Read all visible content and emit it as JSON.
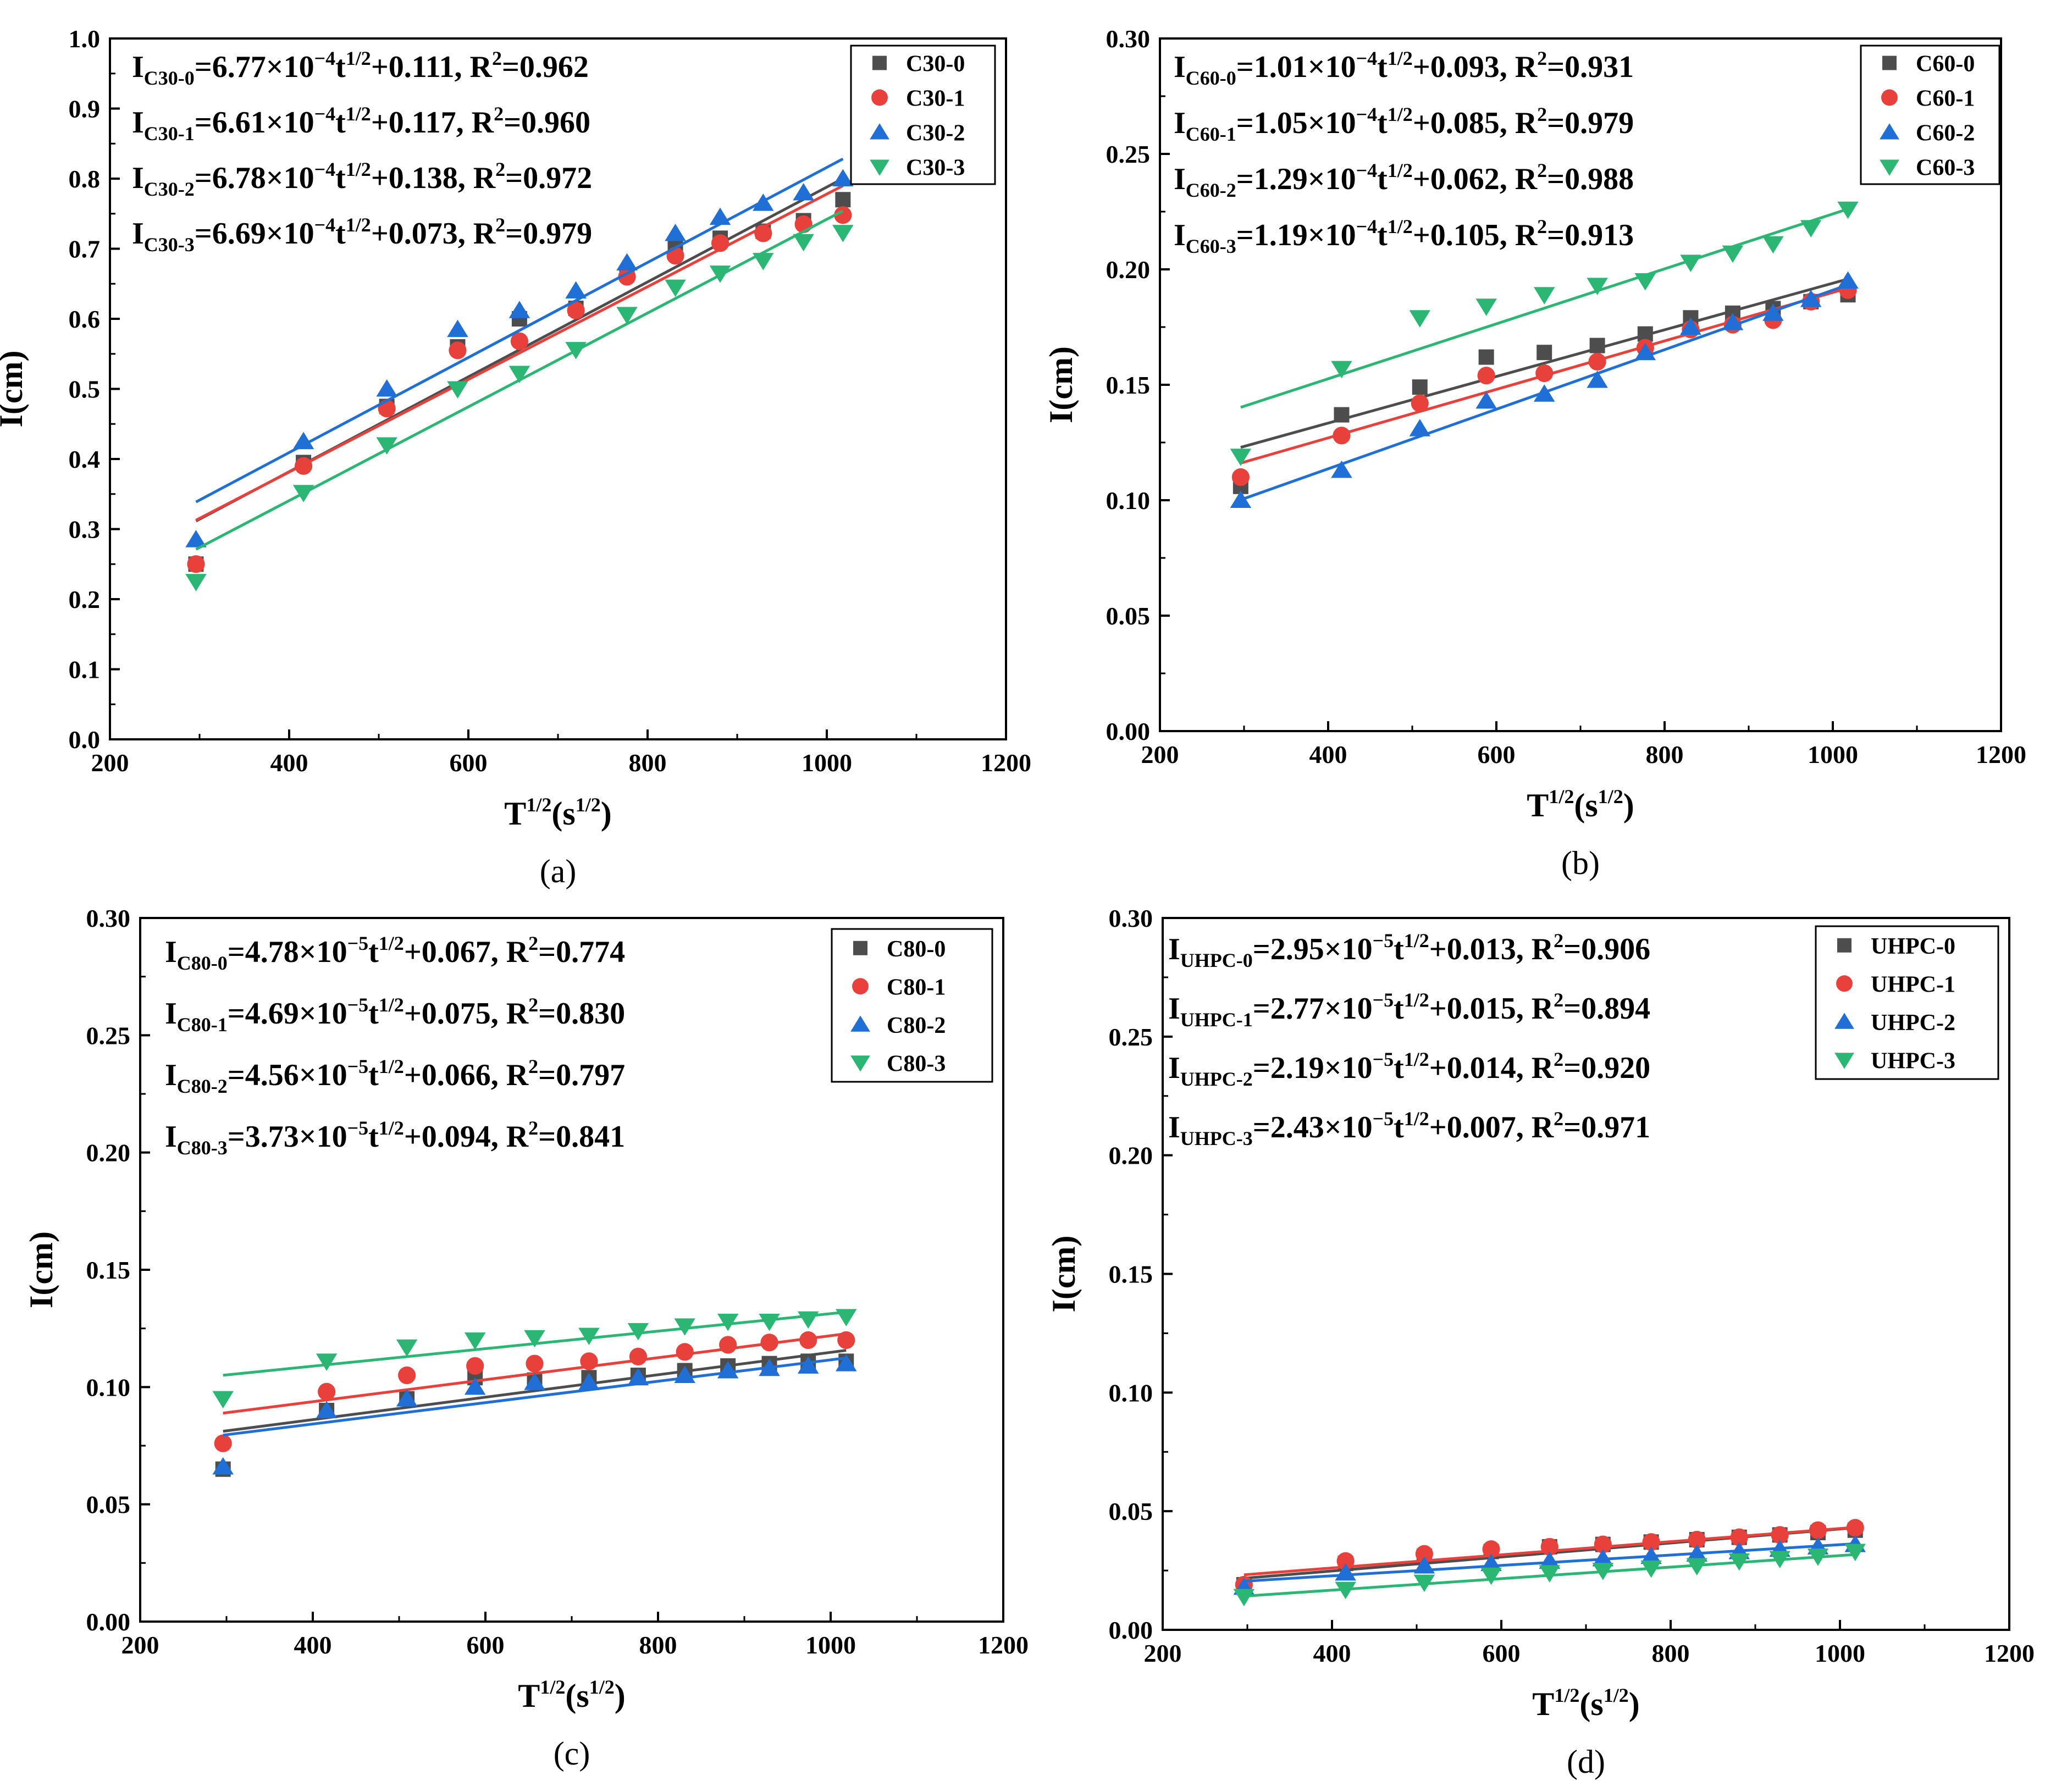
{
  "chart_data": [
    {
      "type": "scatter",
      "panel_label": "(a)",
      "xlabel": {
        "base": "T",
        "sup1": "1/2",
        "mid": "(s",
        "sup2": "1/2",
        "end": ")"
      },
      "ylabel": "I(cm)",
      "xlim": [
        200,
        1200
      ],
      "ylim": [
        0,
        1.0
      ],
      "xticks": [
        "200",
        "400",
        "600",
        "800",
        "1000",
        "1200"
      ],
      "yticks": [
        "0.0",
        "0.1",
        "0.2",
        "0.3",
        "0.4",
        "0.5",
        "0.6",
        "0.7",
        "0.8",
        "0.9",
        "1.0"
      ],
      "legend_position": "top-right",
      "x": [
        296,
        416,
        509,
        588,
        657,
        720,
        777,
        831,
        881,
        929,
        974,
        1018
      ],
      "series": [
        {
          "name": "C30-0",
          "color": "#4d4d4d",
          "marker": "square",
          "fit": [
            0.111,
            0.000677
          ],
          "values": [
            0.25,
            0.395,
            0.475,
            0.56,
            0.6,
            0.615,
            0.665,
            0.7,
            0.715,
            0.725,
            0.74,
            0.77
          ]
        },
        {
          "name": "C30-1",
          "color": "#e8403a",
          "marker": "circle",
          "fit": [
            0.117,
            0.000661
          ],
          "values": [
            0.25,
            0.39,
            0.472,
            0.555,
            0.568,
            0.612,
            0.66,
            0.69,
            0.708,
            0.722,
            0.735,
            0.748
          ]
        },
        {
          "name": "C30-2",
          "color": "#1f6fd6",
          "marker": "triangle-up",
          "fit": [
            0.138,
            0.000678
          ],
          "values": [
            0.285,
            0.425,
            0.5,
            0.585,
            0.612,
            0.64,
            0.68,
            0.722,
            0.745,
            0.765,
            0.78,
            0.8
          ]
        },
        {
          "name": "C30-3",
          "color": "#2bb673",
          "marker": "triangle-down",
          "fit": [
            0.073,
            0.000669
          ],
          "values": [
            0.225,
            0.352,
            0.42,
            0.5,
            0.522,
            0.556,
            0.606,
            0.645,
            0.665,
            0.683,
            0.71,
            0.723
          ]
        }
      ],
      "equations": [
        {
          "sub": "C30-0",
          "body": "=6.77×10",
          "exp": "−4",
          "t": "t",
          "half": "1/2",
          "tail": "+0.111, R",
          "r2sup": "2",
          "r2": "=0.962"
        },
        {
          "sub": "C30-1",
          "body": "=6.61×10",
          "exp": "−4",
          "t": "t",
          "half": "1/2",
          "tail": "+0.117, R",
          "r2sup": "2",
          "r2": "=0.960"
        },
        {
          "sub": "C30-2",
          "body": "=6.78×10",
          "exp": "−4",
          "t": "t",
          "half": "1/2",
          "tail": "+0.138, R",
          "r2sup": "2",
          "r2": "=0.972"
        },
        {
          "sub": "C30-3",
          "body": "=6.69×10",
          "exp": "−4",
          "t": "t",
          "half": "1/2",
          "tail": "+0.073, R",
          "r2sup": "2",
          "r2": "=0.979"
        }
      ]
    },
    {
      "type": "scatter",
      "panel_label": "(b)",
      "xlabel": {
        "base": "T",
        "sup1": "1/2",
        "mid": "(s",
        "sup2": "1/2",
        "end": ")"
      },
      "ylabel": "I(cm)",
      "xlim": [
        200,
        1200
      ],
      "ylim": [
        0,
        0.3
      ],
      "xticks": [
        "200",
        "400",
        "600",
        "800",
        "1000",
        "1200"
      ],
      "yticks": [
        "0.00",
        "0.05",
        "0.10",
        "0.15",
        "0.20",
        "0.25",
        "0.30"
      ],
      "legend_position": "top-right",
      "x": [
        296,
        416,
        509,
        588,
        657,
        720,
        777,
        831,
        881,
        929,
        974,
        1018
      ],
      "series": [
        {
          "name": "C60-0",
          "color": "#4d4d4d",
          "marker": "square",
          "fit": [
            0.093,
            0.000101
          ],
          "values": [
            0.106,
            0.137,
            0.149,
            0.162,
            0.164,
            0.167,
            0.172,
            0.179,
            0.181,
            0.183,
            0.186,
            0.189
          ]
        },
        {
          "name": "C60-1",
          "color": "#e8403a",
          "marker": "circle",
          "fit": [
            0.085,
            0.000105
          ],
          "values": [
            0.11,
            0.128,
            0.142,
            0.154,
            0.155,
            0.16,
            0.166,
            0.174,
            0.176,
            0.178,
            0.186,
            0.191
          ]
        },
        {
          "name": "C60-2",
          "color": "#1f6fd6",
          "marker": "triangle-up",
          "fit": [
            0.062,
            0.000129
          ],
          "values": [
            0.1,
            0.113,
            0.131,
            0.143,
            0.146,
            0.152,
            0.164,
            0.175,
            0.177,
            0.181,
            0.187,
            0.195
          ]
        },
        {
          "name": "C60-3",
          "color": "#2bb673",
          "marker": "triangle-down",
          "fit": [
            0.105,
            0.000119
          ],
          "values": [
            0.119,
            0.157,
            0.179,
            0.184,
            0.189,
            0.193,
            0.195,
            0.203,
            0.207,
            0.211,
            0.218,
            0.226
          ]
        }
      ],
      "equations": [
        {
          "sub": "C60-0",
          "body": "=1.01×10",
          "exp": "−4",
          "t": "t",
          "half": "1/2",
          "tail": "+0.093, R",
          "r2sup": "2",
          "r2": "=0.931"
        },
        {
          "sub": "C60-1",
          "body": "=1.05×10",
          "exp": "−4",
          "t": "t",
          "half": "1/2",
          "tail": "+0.085, R",
          "r2sup": "2",
          "r2": "=0.979"
        },
        {
          "sub": "C60-2",
          "body": "=1.29×10",
          "exp": "−4",
          "t": "t",
          "half": "1/2",
          "tail": "+0.062, R",
          "r2sup": "2",
          "r2": "=0.988"
        },
        {
          "sub": "C60-3",
          "body": "=1.19×10",
          "exp": "−4",
          "t": "t",
          "half": "1/2",
          "tail": "+0.105, R",
          "r2sup": "2",
          "r2": "=0.913"
        }
      ]
    },
    {
      "type": "scatter",
      "panel_label": "(c)",
      "xlabel": {
        "base": "T",
        "sup1": "1/2",
        "mid": "(s",
        "sup2": "1/2",
        "end": ")"
      },
      "ylabel": "I(cm)",
      "xlim": [
        200,
        1200
      ],
      "ylim": [
        0,
        0.3
      ],
      "xticks": [
        "200",
        "400",
        "600",
        "800",
        "1000",
        "1200"
      ],
      "yticks": [
        "0.00",
        "0.05",
        "0.10",
        "0.15",
        "0.20",
        "0.25",
        "0.30"
      ],
      "legend_position": "top-right",
      "x": [
        296,
        416,
        509,
        588,
        657,
        720,
        777,
        831,
        881,
        929,
        974,
        1018
      ],
      "series": [
        {
          "name": "C80-0",
          "color": "#4d4d4d",
          "marker": "square",
          "fit": [
            0.067,
            4.78e-05
          ],
          "values": [
            0.065,
            0.09,
            0.095,
            0.104,
            0.103,
            0.104,
            0.105,
            0.107,
            0.109,
            0.11,
            0.111,
            0.111
          ]
        },
        {
          "name": "C80-1",
          "color": "#e8403a",
          "marker": "circle",
          "fit": [
            0.075,
            4.69e-05
          ],
          "values": [
            0.076,
            0.098,
            0.105,
            0.109,
            0.11,
            0.111,
            0.113,
            0.115,
            0.118,
            0.119,
            0.12,
            0.12
          ]
        },
        {
          "name": "C80-2",
          "color": "#1f6fd6",
          "marker": "triangle-up",
          "fit": [
            0.066,
            4.56e-05
          ],
          "values": [
            0.066,
            0.09,
            0.095,
            0.1,
            0.102,
            0.102,
            0.104,
            0.105,
            0.107,
            0.108,
            0.109,
            0.11
          ]
        },
        {
          "name": "C80-3",
          "color": "#2bb673",
          "marker": "triangle-down",
          "fit": [
            0.094,
            3.73e-05
          ],
          "values": [
            0.095,
            0.111,
            0.117,
            0.12,
            0.121,
            0.122,
            0.124,
            0.126,
            0.128,
            0.128,
            0.129,
            0.13
          ]
        }
      ],
      "equations": [
        {
          "sub": "C80-0",
          "body": "=4.78×10",
          "exp": "−5",
          "t": "t",
          "half": "1/2",
          "tail": "+0.067, R",
          "r2sup": "2",
          "r2": "=0.774"
        },
        {
          "sub": "C80-1",
          "body": "=4.69×10",
          "exp": "−5",
          "t": "t",
          "half": "1/2",
          "tail": "+0.075, R",
          "r2sup": "2",
          "r2": "=0.830"
        },
        {
          "sub": "C80-2",
          "body": "=4.56×10",
          "exp": "−5",
          "t": "t",
          "half": "1/2",
          "tail": "+0.066, R",
          "r2sup": "2",
          "r2": "=0.797"
        },
        {
          "sub": "C80-3",
          "body": "=3.73×10",
          "exp": "−5",
          "t": "t",
          "half": "1/2",
          "tail": "+0.094, R",
          "r2sup": "2",
          "r2": "=0.841"
        }
      ]
    },
    {
      "type": "scatter",
      "panel_label": "(d)",
      "xlabel": {
        "base": "T",
        "sup1": "1/2",
        "mid": "(s",
        "sup2": "1/2",
        "end": ")"
      },
      "ylabel": "I(cm)",
      "xlim": [
        200,
        1200
      ],
      "ylim": [
        0,
        0.3
      ],
      "xticks": [
        "200",
        "400",
        "600",
        "800",
        "1000",
        "1200"
      ],
      "yticks": [
        "0.00",
        "0.05",
        "0.10",
        "0.15",
        "0.20",
        "0.25",
        "0.30"
      ],
      "legend_position": "top-right",
      "x": [
        296,
        416,
        509,
        588,
        657,
        720,
        777,
        831,
        881,
        929,
        974,
        1018
      ],
      "series": [
        {
          "name": "UHPC-0",
          "color": "#4d4d4d",
          "marker": "square",
          "fit": [
            0.013,
            2.95e-05
          ],
          "values": [
            0.019,
            0.028,
            0.031,
            0.033,
            0.035,
            0.036,
            0.037,
            0.038,
            0.039,
            0.04,
            0.041,
            0.042
          ]
        },
        {
          "name": "UHPC-1",
          "color": "#e8403a",
          "marker": "circle",
          "fit": [
            0.015,
            2.77e-05
          ],
          "values": [
            0.019,
            0.029,
            0.032,
            0.034,
            0.035,
            0.036,
            0.037,
            0.038,
            0.039,
            0.04,
            0.042,
            0.043
          ]
        },
        {
          "name": "UHPC-2",
          "color": "#1f6fd6",
          "marker": "triangle-up",
          "fit": [
            0.014,
            2.19e-05
          ],
          "values": [
            0.018,
            0.024,
            0.027,
            0.028,
            0.029,
            0.03,
            0.031,
            0.032,
            0.033,
            0.034,
            0.035,
            0.036
          ]
        },
        {
          "name": "UHPC-3",
          "color": "#2bb673",
          "marker": "triangle-down",
          "fit": [
            0.007,
            2.43e-05
          ],
          "values": [
            0.014,
            0.017,
            0.02,
            0.023,
            0.024,
            0.025,
            0.026,
            0.027,
            0.029,
            0.03,
            0.031,
            0.033
          ]
        }
      ],
      "equations": [
        {
          "sub": "UHPC-0",
          "body": "=2.95×10",
          "exp": "−5",
          "t": "t",
          "half": "1/2",
          "tail": "+0.013, R",
          "r2sup": "2",
          "r2": "=0.906"
        },
        {
          "sub": "UHPC-1",
          "body": "=2.77×10",
          "exp": "−5",
          "t": "t",
          "half": "1/2",
          "tail": "+0.015, R",
          "r2sup": "2",
          "r2": "=0.894"
        },
        {
          "sub": "UHPC-2",
          "body": "=2.19×10",
          "exp": "−5",
          "t": "t",
          "half": "1/2",
          "tail": "+0.014, R",
          "r2sup": "2",
          "r2": "=0.920"
        },
        {
          "sub": "UHPC-3",
          "body": "=2.43×10",
          "exp": "−5",
          "t": "t",
          "half": "1/2",
          "tail": "+0.007, R",
          "r2sup": "2",
          "r2": "=0.971"
        }
      ]
    }
  ]
}
